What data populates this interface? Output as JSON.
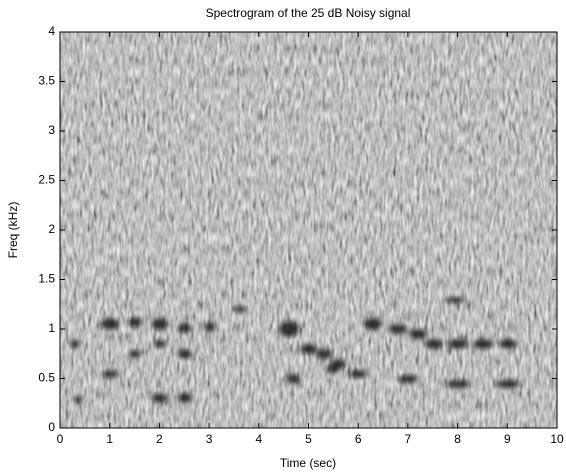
{
  "chart_data": {
    "type": "spectrogram",
    "title": "Spectrogram of the 25 dB Noisy signal",
    "x_label": "Time (sec)",
    "y_label": "Freq (kHz)",
    "xlim": [
      0,
      10
    ],
    "xticks": [
      0,
      1,
      2,
      3,
      4,
      5,
      6,
      7,
      8,
      9,
      10
    ],
    "ylim": [
      0,
      4
    ],
    "yticks": [
      0,
      0.5,
      1,
      1.5,
      2,
      2.5,
      3,
      3.5,
      4
    ]
  }
}
